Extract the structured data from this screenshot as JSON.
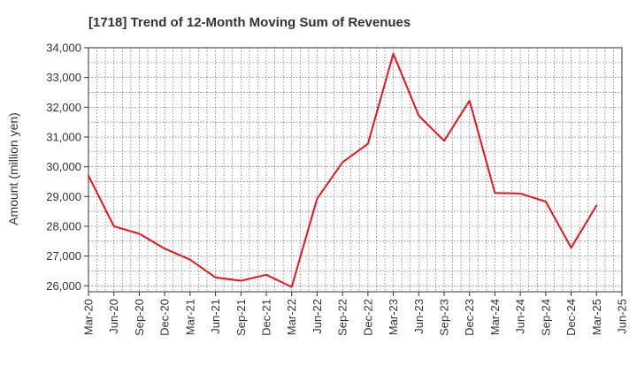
{
  "chart_data": {
    "type": "line",
    "title": "[1718]  Trend of 12-Month Moving Sum of Revenues",
    "xlabel": "",
    "ylabel": "Amount (million yen)",
    "ylim": [
      25800,
      34000
    ],
    "yticks": [
      26000,
      27000,
      28000,
      29000,
      30000,
      31000,
      32000,
      33000,
      34000
    ],
    "ytick_labels": [
      "26,000",
      "27,000",
      "28,000",
      "29,000",
      "30,000",
      "31,000",
      "32,000",
      "33,000",
      "34,000"
    ],
    "x_tick_labels": [
      "Mar-20",
      "Jun-20",
      "Sep-20",
      "Dec-20",
      "Mar-21",
      "Jun-21",
      "Sep-21",
      "Dec-21",
      "Mar-22",
      "Jun-22",
      "Sep-22",
      "Dec-22",
      "Mar-23",
      "Jun-23",
      "Sep-23",
      "Dec-23",
      "Mar-24",
      "Jun-24",
      "Sep-24",
      "Dec-24",
      "Mar-25",
      "Jun-25"
    ],
    "grid": true,
    "legend": "none",
    "series": [
      {
        "color": "#e8141c",
        "x": [
          "Mar-20",
          "Jun-20",
          "Sep-20",
          "Dec-20",
          "Mar-21",
          "Jun-21",
          "Sep-21",
          "Dec-21",
          "Mar-22",
          "Jun-22",
          "Sep-22",
          "Dec-22",
          "Mar-23",
          "Jun-23",
          "Sep-23",
          "Dec-23",
          "Mar-24",
          "Jun-24",
          "Sep-24",
          "Dec-24",
          "Mar-25"
        ],
        "values": [
          29700,
          28000,
          27750,
          27250,
          26880,
          26280,
          26170,
          26370,
          25960,
          28930,
          30150,
          30770,
          33800,
          31720,
          30870,
          32220,
          29120,
          29100,
          28830,
          27280,
          28700
        ]
      }
    ]
  }
}
